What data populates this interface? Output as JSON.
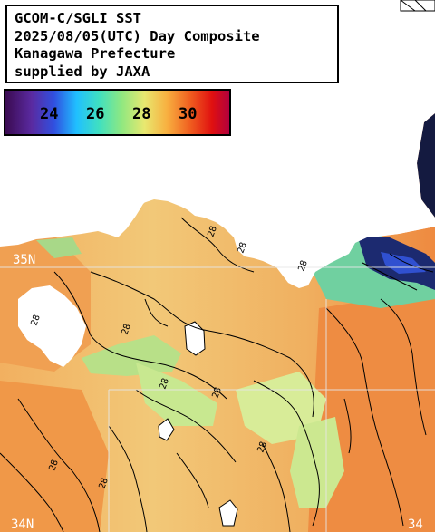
{
  "info": {
    "line1": "GCOM-C/SGLI SST",
    "line2": "2025/08/05(UTC) Day Composite",
    "line3": "Kanagawa Prefecture",
    "line4": "supplied by JAXA"
  },
  "colorbar": {
    "ticks": [
      "24",
      "26",
      "28",
      "30"
    ],
    "colors": [
      "#3a0a4f",
      "#5a2aa0",
      "#3050e0",
      "#20c0ff",
      "#40e0c0",
      "#80e880",
      "#e8e870",
      "#f8b040",
      "#f06020",
      "#e01010",
      "#c00040"
    ]
  },
  "grid_labels": {
    "lat_35n": "35N",
    "lat_34n": "34N",
    "lon_34": "34"
  },
  "contour_labels": {
    "a": "28",
    "b": "28",
    "c": "28",
    "d": "28",
    "e": "28",
    "f": "28",
    "g": "28",
    "h": "28",
    "i": "28",
    "j": "28"
  },
  "colors": {
    "land": "#ffffff",
    "sea_warm": "#f0a050",
    "sea_mid": "#f2c070",
    "sea_cool": "#c0e890",
    "sea_cold": "#60c8a0",
    "cold_pocket": "#1a1a60",
    "grid": "#e0e0e0"
  }
}
